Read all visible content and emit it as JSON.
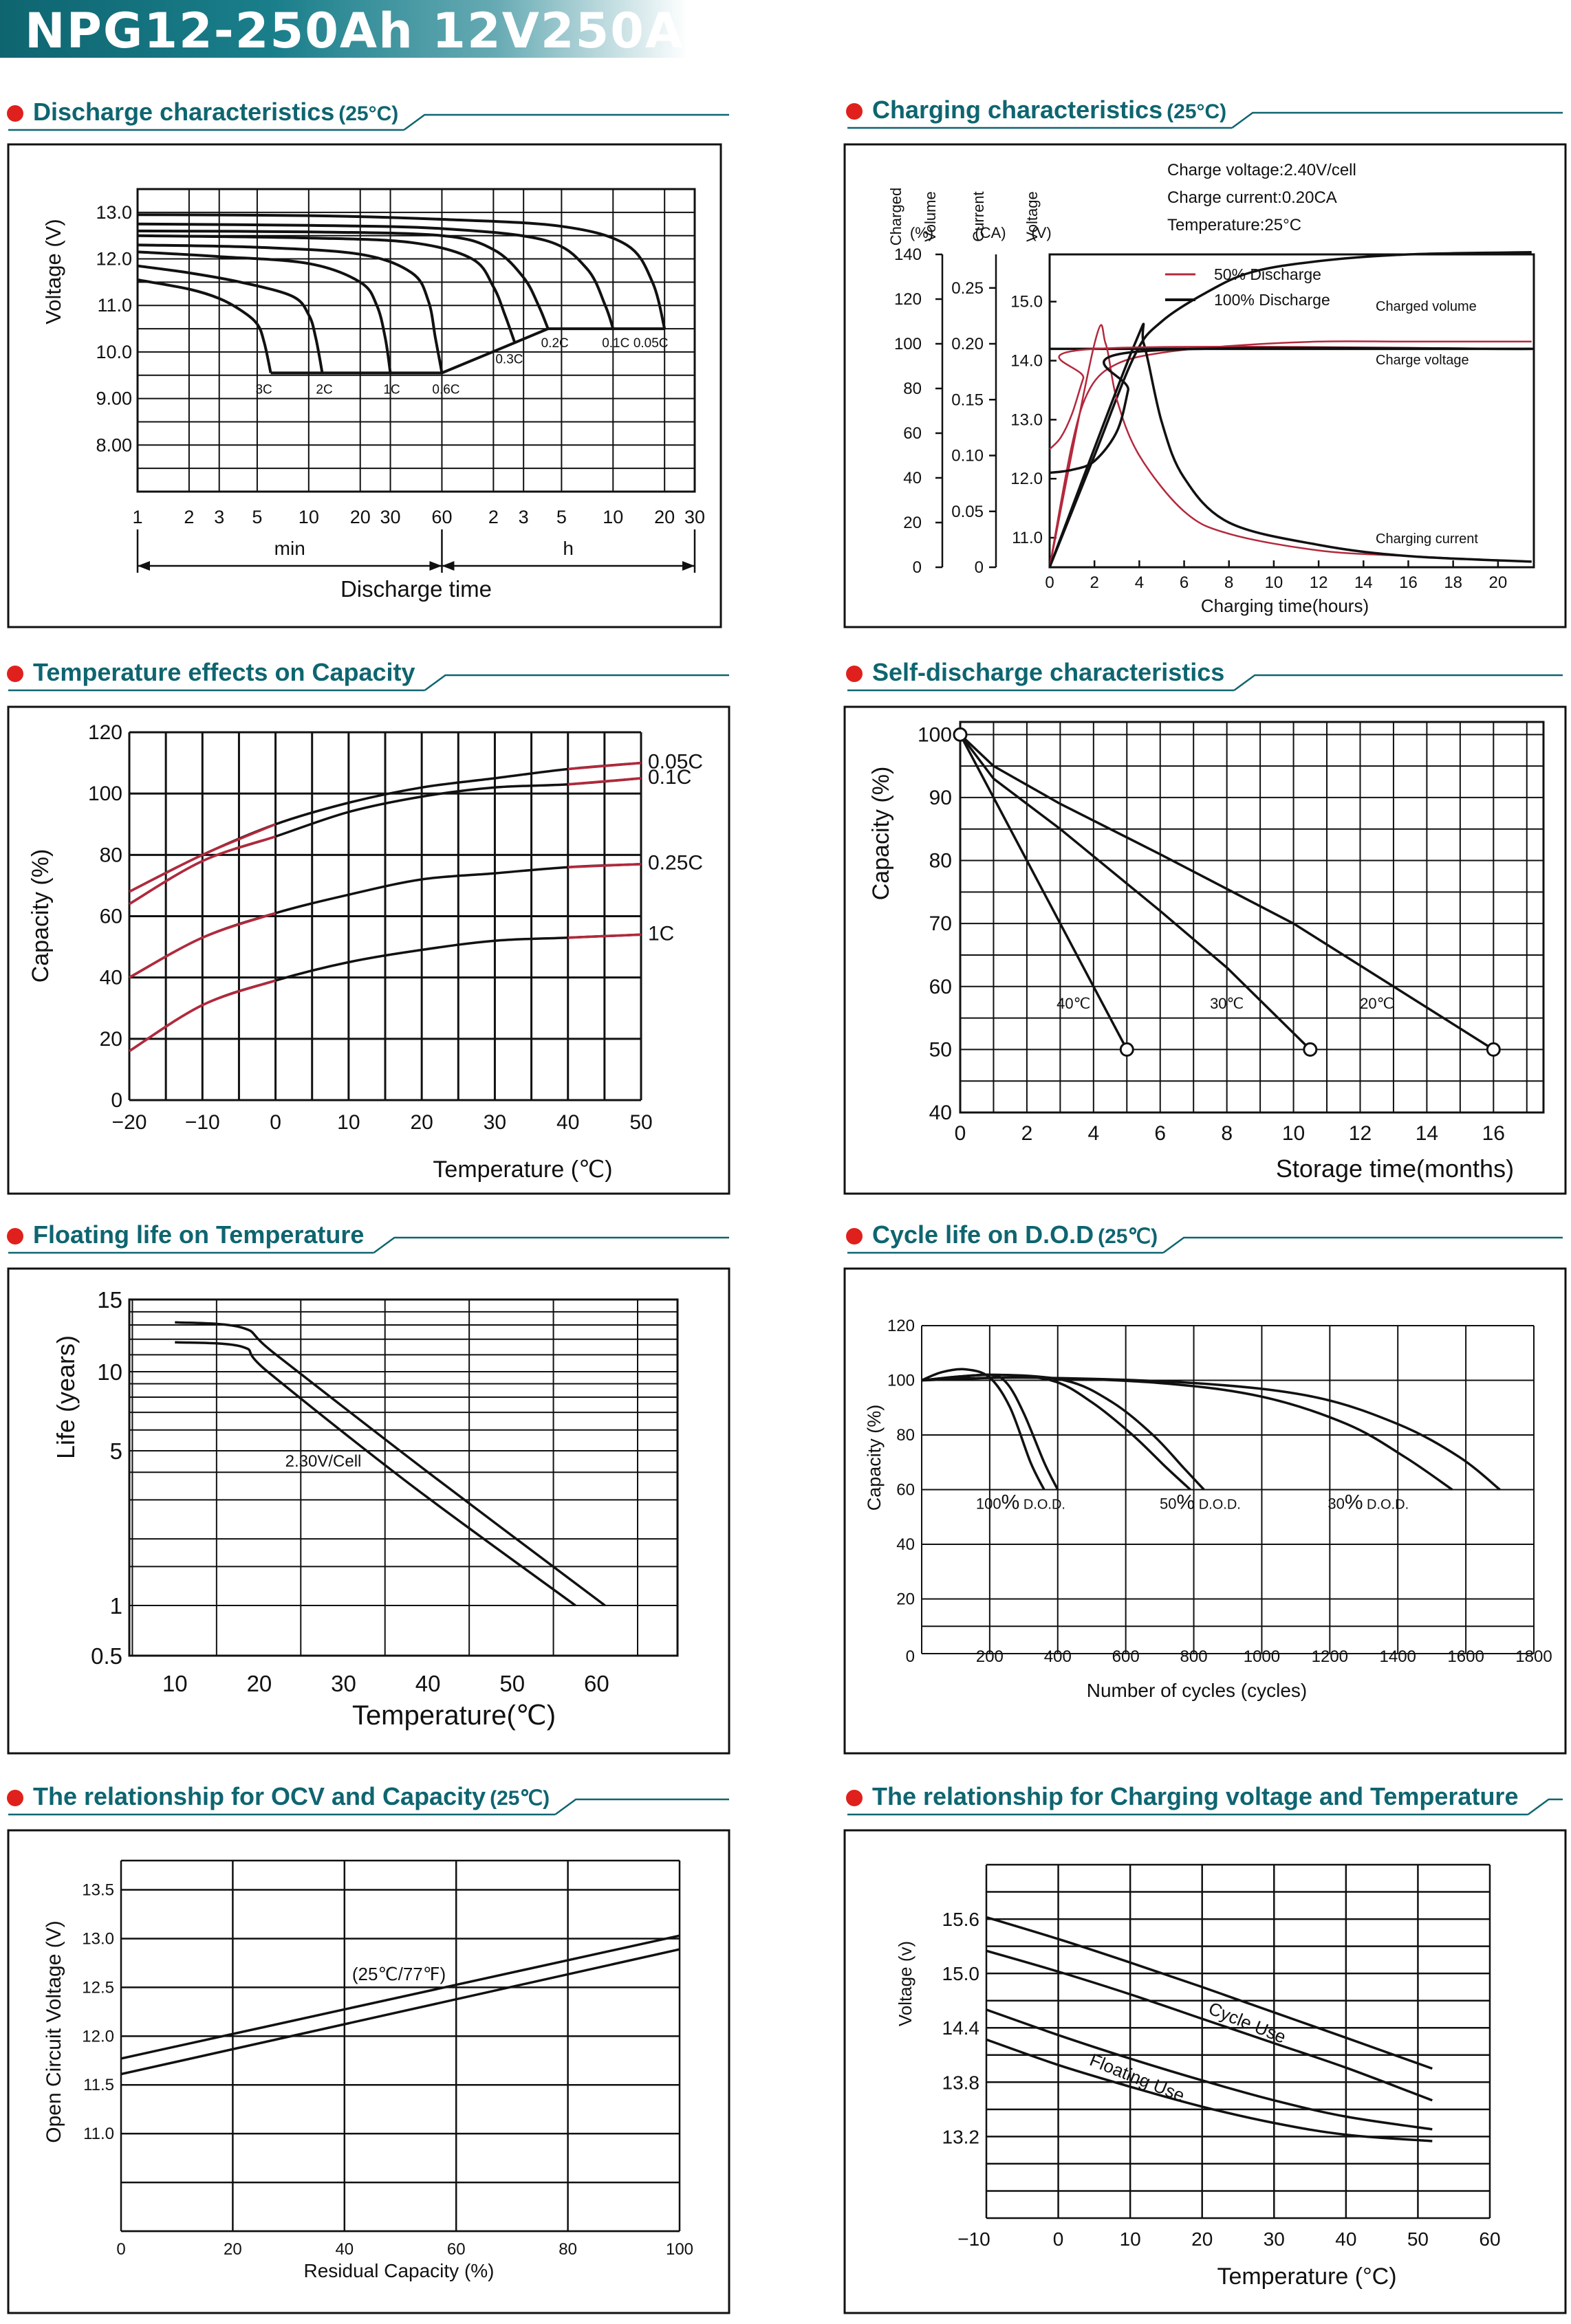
{
  "header": {
    "title": "NPG12-250Ah 12V250A"
  },
  "colors": {
    "accent": "#0e6570",
    "dot": "#e0201c",
    "curve": "#111111",
    "red_curve": "#b4283c"
  },
  "chart_data": [
    {
      "id": "discharge",
      "type": "line",
      "title": "Discharge characteristics",
      "title_suffix": "(25°C)",
      "ylabel": "Voltage (V)",
      "xlabel": "Discharge time",
      "yticks": [
        "13.0",
        "12.0",
        "11.0",
        "10.0",
        "9.00",
        "8.00"
      ],
      "ylim": [
        7.0,
        13.5
      ],
      "x_min_ticks": [
        "1",
        "2",
        "3",
        "5",
        "10",
        "20",
        "30",
        "60"
      ],
      "x_h_ticks": [
        "2",
        "3",
        "5",
        "10",
        "20",
        "30"
      ],
      "x_unit_labels": [
        "min",
        "h"
      ],
      "x_scale": "log (minutes, 1 min to 30 h)",
      "series": [
        {
          "name": "3C",
          "x_min": [
            1,
            2,
            3,
            4,
            5,
            5.5,
            6
          ],
          "y": [
            11.55,
            11.35,
            11.15,
            10.9,
            10.6,
            10.2,
            9.55
          ]
        },
        {
          "name": "2C",
          "x_min": [
            1,
            2,
            4,
            8,
            10,
            11,
            12
          ],
          "y": [
            11.85,
            11.7,
            11.5,
            11.2,
            10.8,
            10.3,
            9.55
          ]
        },
        {
          "name": "1C",
          "x_min": [
            1,
            3,
            10,
            20,
            25,
            28,
            30
          ],
          "y": [
            12.15,
            12.05,
            11.9,
            11.5,
            11.0,
            10.3,
            9.55
          ]
        },
        {
          "name": "0.6C",
          "x_min": [
            1,
            5,
            20,
            40,
            50,
            55,
            60
          ],
          "y": [
            12.3,
            12.25,
            12.1,
            11.7,
            11.1,
            10.3,
            9.55
          ]
        },
        {
          "name": "0.3C",
          "x_min": [
            1,
            10,
            40,
            90,
            120,
            140,
            160
          ],
          "y": [
            12.5,
            12.45,
            12.35,
            12.0,
            11.4,
            10.8,
            10.2
          ]
        },
        {
          "name": "0.2C",
          "x_min": [
            1,
            10,
            60,
            120,
            180,
            220,
            250
          ],
          "y": [
            12.6,
            12.58,
            12.5,
            12.2,
            11.6,
            11.0,
            10.5
          ]
        },
        {
          "name": "0.1C",
          "x_min": [
            1,
            10,
            60,
            240,
            420,
            540,
            600
          ],
          "y": [
            12.75,
            12.72,
            12.65,
            12.4,
            11.8,
            11.0,
            10.5
          ]
        },
        {
          "name": "0.05C",
          "x_min": [
            1,
            10,
            60,
            300,
            720,
            1020,
            1200
          ],
          "y": [
            12.95,
            12.93,
            12.85,
            12.7,
            12.3,
            11.5,
            10.5
          ]
        }
      ],
      "cutoff_labels": [
        "3C",
        "2C",
        "1C",
        "0.6C",
        "0.3C",
        "0.2C",
        "0.1C",
        "0.05C"
      ]
    },
    {
      "id": "charging",
      "type": "line",
      "title": "Charging characteristics",
      "title_suffix": "(25°C)",
      "axis_titles": [
        [
          "Charged",
          "Volume",
          "(%)"
        ],
        [
          "Current",
          "(CA)"
        ],
        [
          "Voltage",
          "(V)"
        ]
      ],
      "volume_ticks": [
        "140",
        "120",
        "100",
        "80",
        "60",
        "40",
        "20",
        "0"
      ],
      "current_ticks": [
        "0.25",
        "0.20",
        "0.15",
        "0.10",
        "0.05",
        "0"
      ],
      "voltage_ticks": [
        "15.0",
        "14.0",
        "13.0",
        "12.0",
        "11.0"
      ],
      "xticks": [
        "0",
        "2",
        "4",
        "6",
        "8",
        "10",
        "12",
        "14",
        "16",
        "18",
        "20"
      ],
      "xlabel": "Charging time(hours)",
      "info_lines": [
        "Charge voltage:2.40V/cell",
        "Charge current:0.20CA",
        "Temperature:25°C"
      ],
      "legend": [
        "50% Discharge",
        "100% Discharge"
      ],
      "curve_labels": [
        "Charged volume",
        "Charge voltage",
        "Charging current"
      ],
      "series": [
        {
          "name": "50% Discharge",
          "kind": "volume",
          "x": [
            0,
            1,
            1.8,
            3,
            5,
            8,
            12,
            16,
            21.5
          ],
          "y": [
            0,
            55,
            80,
            91,
            96,
            99,
            101,
            101,
            101
          ]
        },
        {
          "name": "100% Discharge",
          "kind": "volume",
          "x": [
            0,
            2,
            3.8,
            5,
            7,
            9,
            12,
            16,
            21.5
          ],
          "y": [
            0,
            50,
            95,
            110,
            123,
            132,
            137,
            140,
            141
          ]
        },
        {
          "name": "50% Discharge",
          "kind": "current",
          "x": [
            0,
            2,
            2.5,
            3,
            4,
            6,
            8,
            12,
            16,
            21.5
          ],
          "y": [
            0,
            0.2,
            0.2,
            0.15,
            0.1,
            0.05,
            0.03,
            0.015,
            0.01,
            0.005
          ]
        },
        {
          "name": "100% Discharge",
          "kind": "current",
          "x": [
            0,
            3.8,
            4.2,
            5,
            6,
            8,
            12,
            16,
            21.5
          ],
          "y": [
            0,
            0.2,
            0.2,
            0.13,
            0.08,
            0.04,
            0.02,
            0.01,
            0.005
          ]
        },
        {
          "name": "50% Discharge",
          "kind": "voltage",
          "x": [
            0,
            0.5,
            1,
            1.5,
            2,
            21.5
          ],
          "y": [
            12.5,
            12.7,
            13.1,
            13.7,
            14.2,
            14.2
          ]
        },
        {
          "name": "100% Discharge",
          "kind": "voltage",
          "x": [
            0,
            1,
            2,
            3,
            3.5,
            3.8,
            21.5
          ],
          "y": [
            12.1,
            12.15,
            12.3,
            12.8,
            13.5,
            14.15,
            14.2
          ]
        }
      ]
    },
    {
      "id": "temperature_capacity",
      "type": "line",
      "title": "Temperature effects on Capacity",
      "ylabel": "Capacity  (%)",
      "xlabel": "Temperature (℃)",
      "xticks": [
        "-20",
        "-10",
        "0",
        "10",
        "20",
        "30",
        "40",
        "50"
      ],
      "yticks": [
        "0",
        "20",
        "40",
        "60",
        "80",
        "100",
        "120"
      ],
      "xlim": [
        -20,
        50
      ],
      "ylim": [
        0,
        120
      ],
      "series": [
        {
          "name": "0.05C",
          "x": [
            -20,
            -10,
            0,
            10,
            20,
            30,
            40,
            50
          ],
          "y": [
            68,
            80,
            90,
            97,
            102,
            105,
            108,
            110
          ]
        },
        {
          "name": "0.1C",
          "x": [
            -20,
            -10,
            0,
            10,
            20,
            30,
            40,
            50
          ],
          "y": [
            64,
            78,
            86,
            94,
            99,
            102,
            103,
            105
          ]
        },
        {
          "name": "0.25C",
          "x": [
            -20,
            -10,
            0,
            10,
            20,
            30,
            40,
            50
          ],
          "y": [
            40,
            53,
            61,
            67,
            72,
            74,
            76,
            77
          ]
        },
        {
          "name": "1C",
          "x": [
            -20,
            -10,
            0,
            10,
            20,
            30,
            40,
            50
          ],
          "y": [
            16,
            31,
            39,
            45,
            49,
            52,
            53,
            54
          ]
        }
      ],
      "red_x_ranges": [
        [
          -20,
          0
        ],
        [
          40,
          50
        ]
      ]
    },
    {
      "id": "self_discharge",
      "type": "line",
      "title": "Self-discharge characteristics",
      "ylabel": "Capacity (%)",
      "xlabel": "Storage time(months)",
      "xticks": [
        "0",
        "2",
        "4",
        "6",
        "8",
        "10",
        "12",
        "14",
        "16"
      ],
      "yticks": [
        "40",
        "50",
        "60",
        "70",
        "80",
        "90",
        "100"
      ],
      "xlim": [
        0,
        17.5
      ],
      "ylim": [
        40,
        102
      ],
      "series": [
        {
          "name": "40℃",
          "x": [
            0,
            1,
            2,
            3,
            4,
            5
          ],
          "y": [
            100,
            90,
            80,
            70,
            60,
            50
          ]
        },
        {
          "name": "30℃",
          "x": [
            0,
            1,
            3,
            6,
            8,
            10.5
          ],
          "y": [
            100,
            93,
            85,
            72,
            63,
            50
          ]
        },
        {
          "name": "20℃",
          "x": [
            0,
            1,
            3,
            6,
            10,
            16
          ],
          "y": [
            100,
            95,
            89,
            81,
            70,
            50
          ]
        }
      ]
    },
    {
      "id": "floating_life",
      "type": "line",
      "title": "Floating life on Temperature",
      "ylabel": "Life (years)",
      "xlabel": "Temperature(℃)",
      "xticks": [
        "10",
        "20",
        "30",
        "40",
        "50",
        "60"
      ],
      "yticks": [
        "15",
        "10",
        "5",
        "1",
        "0.5"
      ],
      "annotation": "2.30V/Cell",
      "series": [
        {
          "name": "upper",
          "x": [
            10,
            18,
            22,
            40,
            61
          ],
          "y": [
            13.2,
            12.8,
            11.0,
            4.0,
            1.0
          ]
        },
        {
          "name": "lower",
          "x": [
            10,
            18,
            21,
            38,
            57.5
          ],
          "y": [
            11.8,
            11.5,
            10.0,
            3.5,
            1.0
          ]
        }
      ]
    },
    {
      "id": "cycle_life",
      "type": "line",
      "title": "Cycle life on D.O.D",
      "title_suffix": "(25℃)",
      "ylabel": "Capacity (%)",
      "xlabel": "Number of cycles (cycles)",
      "xticks": [
        "0",
        "200",
        "400",
        "600",
        "800",
        "1000",
        "1200",
        "1400",
        "1600",
        "1800"
      ],
      "yticks": [
        "20",
        "40",
        "60",
        "80",
        "100",
        "120"
      ],
      "xlim": [
        0,
        1800
      ],
      "ylim": [
        0,
        120
      ],
      "series": [
        {
          "name": "100% D.O.D. a",
          "x": [
            0,
            60,
            130,
            200,
            260,
            320,
            360
          ],
          "y": [
            100,
            103,
            104,
            101,
            90,
            70,
            60
          ]
        },
        {
          "name": "100% D.O.D. b",
          "x": [
            0,
            100,
            200,
            250,
            300,
            360,
            400
          ],
          "y": [
            100,
            101,
            102,
            99,
            88,
            70,
            60
          ]
        },
        {
          "name": "50% D.O.D. a",
          "x": [
            0,
            200,
            380,
            500,
            620,
            720,
            790
          ],
          "y": [
            100,
            102,
            100,
            92,
            80,
            68,
            60
          ]
        },
        {
          "name": "50% D.O.D. b",
          "x": [
            0,
            200,
            420,
            560,
            680,
            770,
            830
          ],
          "y": [
            100,
            102,
            100,
            92,
            80,
            68,
            60
          ]
        },
        {
          "name": "30% D.O.D. a",
          "x": [
            0,
            300,
            700,
            1000,
            1250,
            1420,
            1560
          ],
          "y": [
            100,
            101,
            99,
            94,
            84,
            72,
            60
          ]
        },
        {
          "name": "30% D.O.D. b",
          "x": [
            0,
            300,
            800,
            1150,
            1400,
            1580,
            1700
          ],
          "y": [
            100,
            101,
            99,
            94,
            84,
            72,
            60
          ]
        }
      ],
      "dod_labels": [
        {
          "pct": "100",
          "suffix": " D.O.D."
        },
        {
          "pct": "50",
          "suffix": " D.O.D."
        },
        {
          "pct": "30",
          "suffix": " D.O.D."
        }
      ]
    },
    {
      "id": "ocv_capacity",
      "type": "line",
      "title": "The relationship  for OCV and Capacity",
      "title_suffix": "(25℃)",
      "ylabel": "Open Circuit Voltage (V)",
      "xlabel": "Residual Capacity (%)",
      "xticks": [
        "0",
        "20",
        "40",
        "60",
        "80",
        "100"
      ],
      "yticks": [
        "13.5",
        "13.0",
        "12.5",
        "12.0",
        "11.5",
        "11.0"
      ],
      "xlim": [
        0,
        100
      ],
      "ylim": [
        10.0,
        13.8
      ],
      "annotation": "(25℃/77℉)",
      "series": [
        {
          "name": "upper",
          "x": [
            0,
            100
          ],
          "y": [
            11.77,
            13.03
          ]
        },
        {
          "name": "lower",
          "x": [
            0,
            100
          ],
          "y": [
            11.61,
            12.89
          ]
        }
      ]
    },
    {
      "id": "charging_voltage_temperature",
      "type": "line",
      "title": "The relationship for Charging voltage and Temperature",
      "ylabel": "Voltage  (v)",
      "xlabel": "Temperature (°C)",
      "xticks": [
        "-10",
        "0",
        "10",
        "20",
        "30",
        "40",
        "50",
        "60"
      ],
      "yticks": [
        "15.6",
        "15.0",
        "14.4",
        "13.8",
        "13.2"
      ],
      "xlim": [
        -10,
        60
      ],
      "ylim": [
        12.3,
        16.2
      ],
      "annotations": [
        "Cycle Use",
        "Floating Use"
      ],
      "series": [
        {
          "name": "Cycle Use upper",
          "x": [
            -10,
            0,
            10,
            20,
            30,
            40,
            52
          ],
          "y": [
            15.62,
            15.38,
            15.12,
            14.85,
            14.57,
            14.29,
            13.95
          ]
        },
        {
          "name": "Cycle Use lower",
          "x": [
            -10,
            0,
            10,
            20,
            30,
            40,
            52
          ],
          "y": [
            15.25,
            15.02,
            14.77,
            14.5,
            14.23,
            13.96,
            13.6
          ]
        },
        {
          "name": "Floating Use upper",
          "x": [
            -10,
            0,
            10,
            20,
            30,
            40,
            52
          ],
          "y": [
            14.6,
            14.32,
            14.06,
            13.82,
            13.6,
            13.42,
            13.28
          ]
        },
        {
          "name": "Floating Use lower",
          "x": [
            -10,
            0,
            10,
            20,
            30,
            40,
            52
          ],
          "y": [
            14.27,
            13.99,
            13.75,
            13.53,
            13.35,
            13.22,
            13.15
          ]
        }
      ]
    }
  ]
}
